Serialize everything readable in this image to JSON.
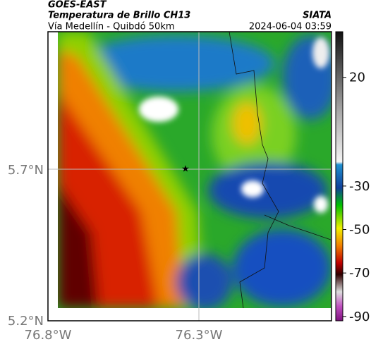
{
  "header": {
    "title": "GOES-EAST",
    "subtitle": "Temperatura de Brillo CH13",
    "region": "Vía Medellín - Quibdó 50km",
    "source": "SIATA",
    "datetime": "2024-06-04 03:59"
  },
  "axes": {
    "lat_labels": [
      "5.7°N",
      "5.2°N"
    ],
    "lon_labels": [
      "76.8°W",
      "76.3°W"
    ]
  },
  "colorbar": {
    "lim": [
      -92,
      41
    ],
    "ticks": [
      20,
      -30,
      -50,
      -70,
      -90
    ]
  }
}
